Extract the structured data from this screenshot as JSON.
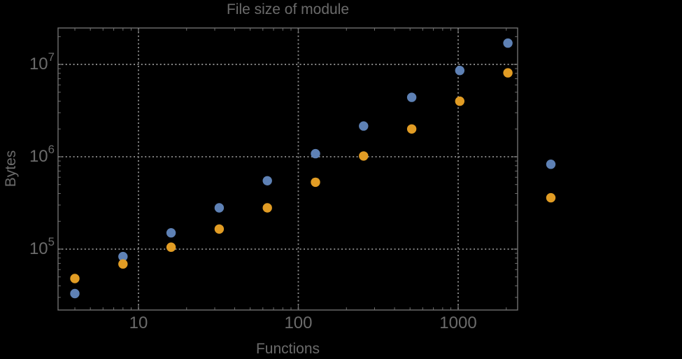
{
  "colors": {
    "background": "#000000",
    "text": "#6b6b6b",
    "frame": "#707070",
    "gridlines": "#8f8f8f",
    "series_blue": "#5e81b5",
    "series_orange": "#e19c24"
  },
  "chart_data": {
    "type": "scatter",
    "title": "File size of module",
    "xlabel": "Functions",
    "ylabel": "Bytes",
    "x_scale": "log",
    "y_scale": "log",
    "grid": "dotted",
    "legend": "none",
    "xlim": [
      3.14,
      2355
    ],
    "ylim": [
      21900,
      24800000
    ],
    "x_ticks": [
      {
        "value": 10,
        "label": "10"
      },
      {
        "value": 100,
        "label": "100"
      },
      {
        "value": 1000,
        "label": "1000"
      }
    ],
    "y_ticks": [
      {
        "value": 100000,
        "label_base": "10",
        "label_exp": "5"
      },
      {
        "value": 1000000,
        "label_base": "10",
        "label_exp": "6"
      },
      {
        "value": 10000000,
        "label_base": "10",
        "label_exp": "7"
      }
    ],
    "series": [
      {
        "name": "blue",
        "color": "#5e81b5",
        "points": [
          [
            4,
            33000
          ],
          [
            8,
            83000
          ],
          [
            16,
            150000
          ],
          [
            32,
            280000
          ],
          [
            64,
            550000
          ],
          [
            128,
            1080000
          ],
          [
            256,
            2150000
          ],
          [
            512,
            4400000
          ],
          [
            1024,
            8600000
          ],
          [
            2048,
            17000000
          ],
          [
            3800,
            830000
          ]
        ]
      },
      {
        "name": "orange",
        "color": "#e19c24",
        "points": [
          [
            4,
            48000
          ],
          [
            8,
            69000
          ],
          [
            16,
            105000
          ],
          [
            32,
            165000
          ],
          [
            64,
            280000
          ],
          [
            128,
            530000
          ],
          [
            256,
            1020000
          ],
          [
            512,
            2000000
          ],
          [
            1024,
            4000000
          ],
          [
            2048,
            8100000
          ],
          [
            3800,
            360000
          ]
        ]
      }
    ]
  }
}
